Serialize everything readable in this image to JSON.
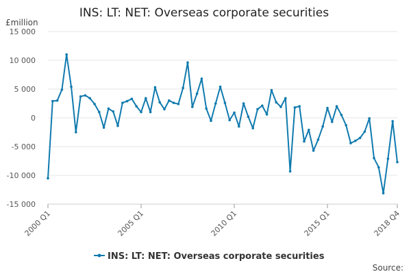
{
  "chart_data": {
    "type": "line",
    "title": "INS: LT: NET: Overseas corporate securities",
    "unit_label": "£million",
    "source_label": "Source:",
    "legend_label": "INS: LT: NET: Overseas corporate securities",
    "series_color": "#0f7aae",
    "grid": true,
    "legend_position": "bottom",
    "ylim": [
      -15000,
      15000
    ],
    "yticks": [
      15000,
      10000,
      5000,
      0,
      -5000,
      -10000,
      -15000
    ],
    "ytick_labels": [
      "15 000",
      "10 000",
      "5 000",
      "0",
      "-5 000",
      "-10 000",
      "-15 000"
    ],
    "xtick_labels": [
      {
        "label": "2000 Q1",
        "index": 0
      },
      {
        "label": "2005 Q1",
        "index": 20
      },
      {
        "label": "2010 Q1",
        "index": 40
      },
      {
        "label": "2015 Q1",
        "index": 60
      },
      {
        "label": "2018 Q4",
        "index": 75
      }
    ],
    "x_start": "2000 Q1",
    "x_end": "2018 Q4",
    "series": [
      {
        "name": "INS: LT: NET: Overseas corporate securities",
        "values": [
          -10500,
          2900,
          3000,
          4900,
          11000,
          5400,
          -2500,
          3700,
          3900,
          3400,
          2400,
          1000,
          -1700,
          1600,
          1100,
          -1400,
          2600,
          2900,
          3300,
          2000,
          1000,
          3400,
          1000,
          5300,
          2700,
          1500,
          3000,
          2600,
          2400,
          5200,
          9600,
          1900,
          4200,
          6800,
          1600,
          -500,
          2500,
          5400,
          2600,
          -400,
          900,
          -1500,
          2500,
          200,
          -1800,
          1500,
          2100,
          600,
          4800,
          2700,
          1900,
          3400,
          -9300,
          1800,
          2000,
          -4100,
          -2100,
          -5700,
          -3800,
          -1500,
          1700,
          -700,
          2000,
          500,
          -1300,
          -4400,
          -4000,
          -3500,
          -2400,
          -100,
          -7000,
          -8600,
          -13100,
          -7100,
          -600,
          -7700
        ]
      }
    ]
  }
}
